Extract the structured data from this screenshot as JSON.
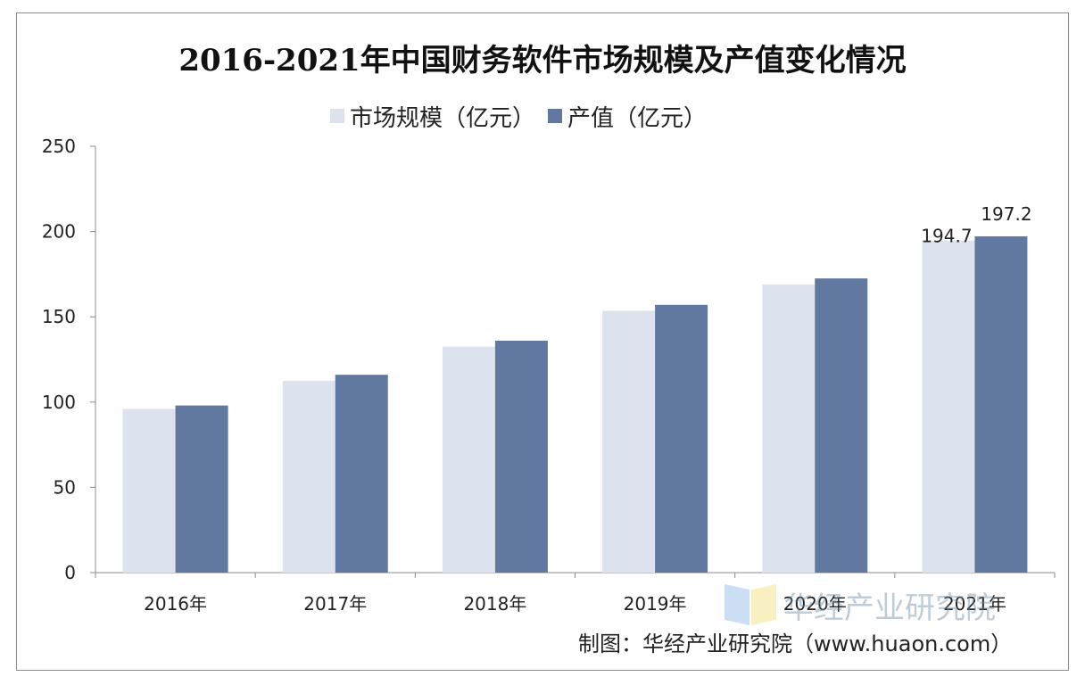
{
  "chart_data": {
    "type": "bar",
    "title": "2016-2021年中国财务软件市场规模及产值变化情况",
    "categories": [
      "2016年",
      "2017年",
      "2018年",
      "2019年",
      "2020年",
      "2021年"
    ],
    "series": [
      {
        "name": "市场规模（亿元）",
        "color": "#dde3ee",
        "values": [
          96,
          112.5,
          132.5,
          153.5,
          169,
          194.7
        ],
        "data_labels": [
          null,
          null,
          null,
          null,
          null,
          "194.7"
        ]
      },
      {
        "name": "产值（亿元）",
        "color": "#6179a1",
        "values": [
          98,
          116,
          136,
          157,
          172.5,
          197.2
        ],
        "data_labels": [
          null,
          null,
          null,
          null,
          null,
          "197.2"
        ]
      }
    ],
    "ylim": [
      0,
      250
    ],
    "yticks": [
      0,
      50,
      100,
      150,
      200,
      250
    ],
    "xlabel": "",
    "ylabel": "",
    "grid": false,
    "legend_position": "top"
  },
  "watermark": {
    "text": "华经产业研究院"
  },
  "source": {
    "text": "制图：华经产业研究院（www.huaon.com）"
  }
}
